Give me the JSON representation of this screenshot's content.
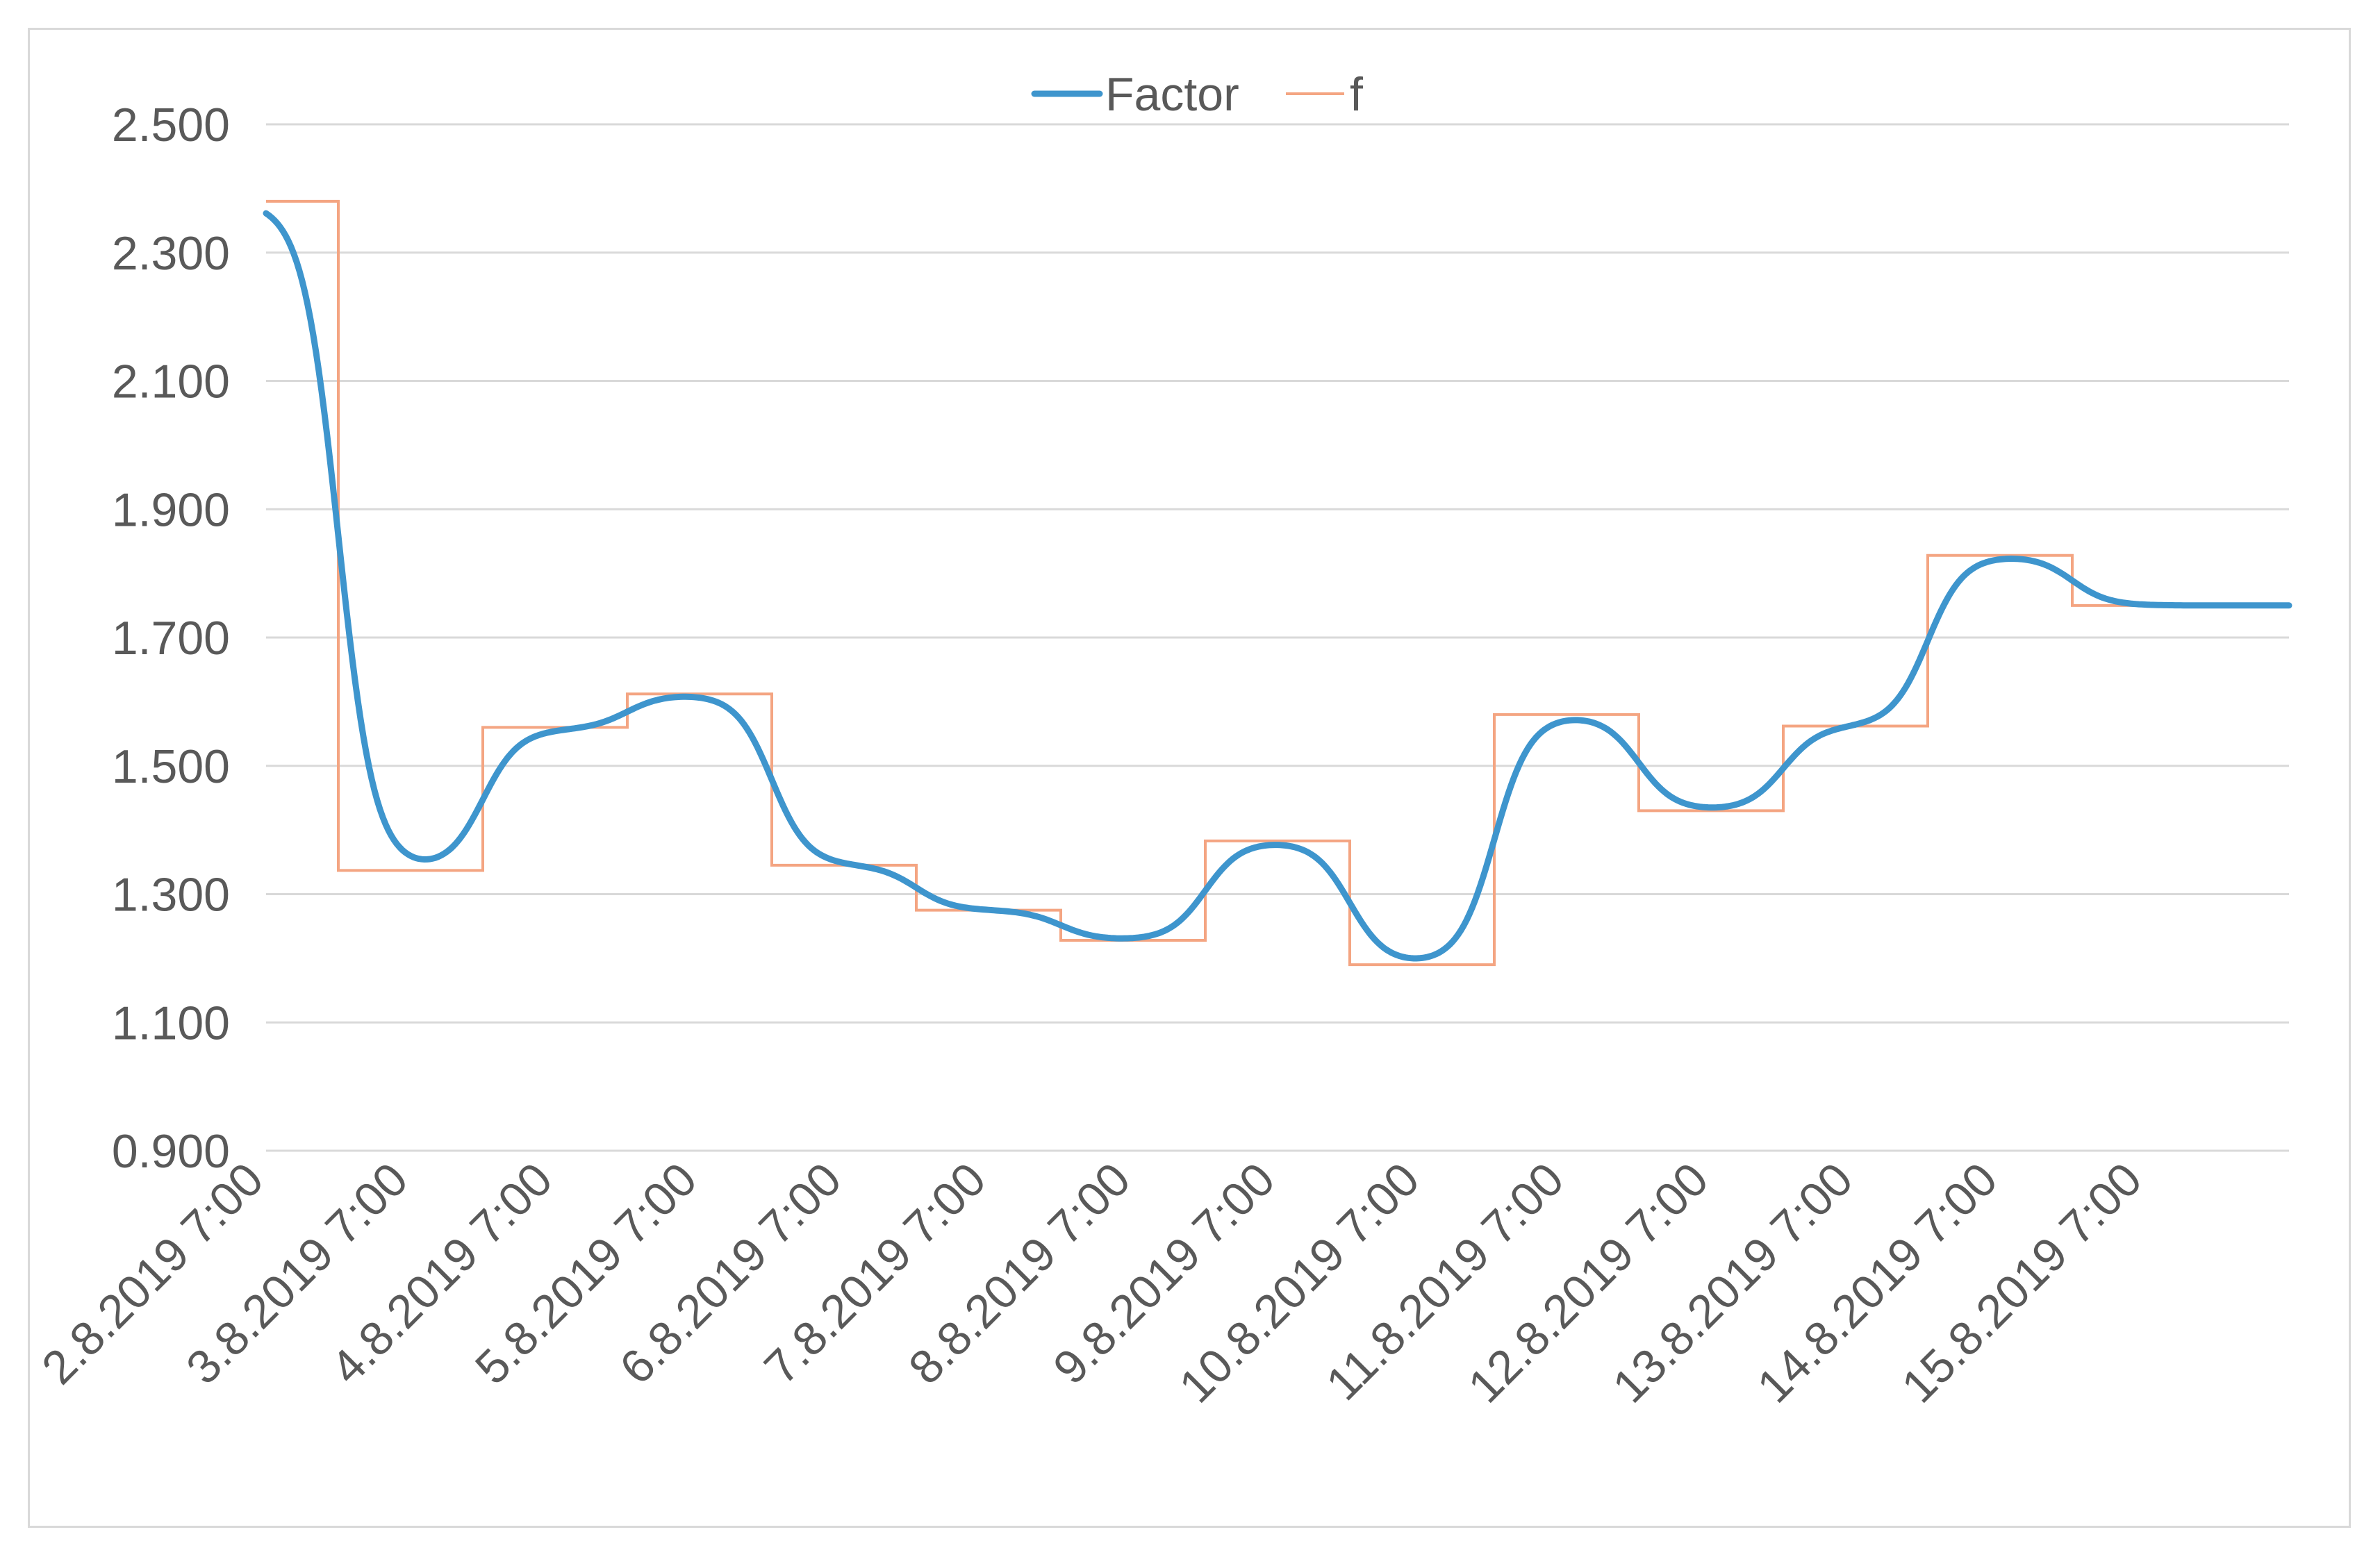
{
  "chart_data": {
    "type": "line",
    "title": "",
    "xlabel": "",
    "ylabel": "",
    "ylim": [
      0.9,
      2.5
    ],
    "y_ticks": [
      "0.900",
      "1.100",
      "1.300",
      "1.500",
      "1.700",
      "1.900",
      "2.100",
      "2.300",
      "2.500"
    ],
    "y_tick_values": [
      0.9,
      1.1,
      1.3,
      1.5,
      1.7,
      1.9,
      2.1,
      2.3,
      2.5
    ],
    "x_tick_labels": [
      "2.8.2019 7:00",
      "3.8.2019 7:00",
      "4.8.2019 7:00",
      "5.8.2019 7:00",
      "6.8.2019 7:00",
      "7.8.2019 7:00",
      "8.8.2019 7:00",
      "9.8.2019 7:00",
      "10.8.2019 7:00",
      "11.8.2019 7:00",
      "12.8.2019 7:00",
      "13.8.2019 7:00",
      "14.8.2019 7:00",
      "15.8.2019 7:00"
    ],
    "grid": true,
    "legend_position": "top-center",
    "series": [
      {
        "name": "Factor",
        "color": "#3e95cd",
        "style": "smooth",
        "values": [
          2.38,
          1.337,
          1.557,
          1.612,
          1.345,
          1.275,
          1.228,
          1.383,
          1.19,
          1.58,
          1.43,
          1.562,
          1.828,
          1.75
        ]
      },
      {
        "name": "f",
        "color": "#f4a582",
        "style": "step",
        "values": [
          2.38,
          1.337,
          1.56,
          1.612,
          1.345,
          1.275,
          1.228,
          1.383,
          1.19,
          1.58,
          1.43,
          1.562,
          1.828,
          1.75
        ]
      }
    ]
  }
}
